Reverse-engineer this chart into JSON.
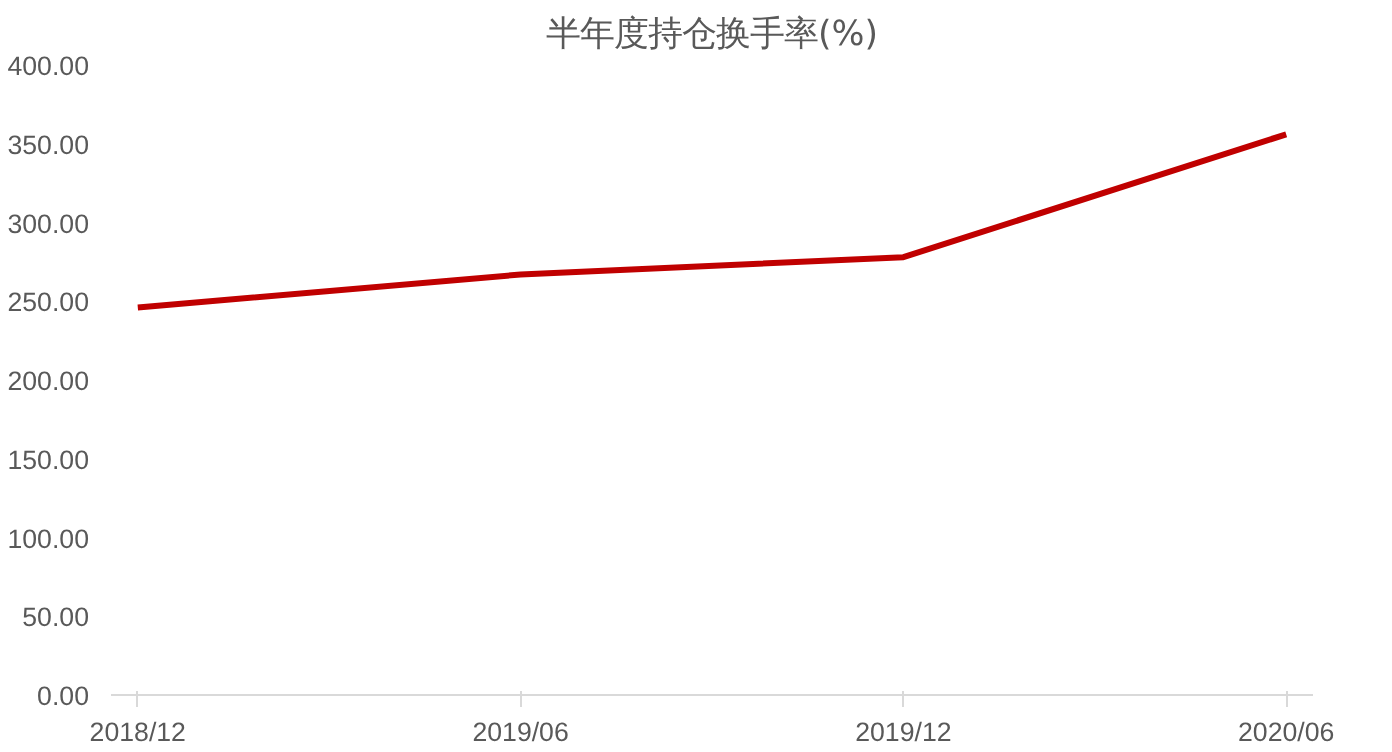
{
  "chart_data": {
    "type": "line",
    "title": "半年度持仓换手率(%)",
    "categories": [
      "2018/12",
      "2019/06",
      "2019/12",
      "2020/06"
    ],
    "series": [
      {
        "color": "#c00000",
        "values": [
          246,
          267,
          278,
          356
        ]
      }
    ],
    "ylim": [
      0,
      400
    ],
    "yticks": [
      {
        "value": 0,
        "label": "0.00"
      },
      {
        "value": 50,
        "label": "50.00"
      },
      {
        "value": 100,
        "label": "100.00"
      },
      {
        "value": 150,
        "label": "150.00"
      },
      {
        "value": 200,
        "label": "200.00"
      },
      {
        "value": 250,
        "label": "250.00"
      },
      {
        "value": 300,
        "label": "300.00"
      },
      {
        "value": 350,
        "label": "350.00"
      },
      {
        "value": 400,
        "label": "400.00"
      }
    ],
    "grid": false,
    "marker": "none",
    "line_style": "solid"
  }
}
